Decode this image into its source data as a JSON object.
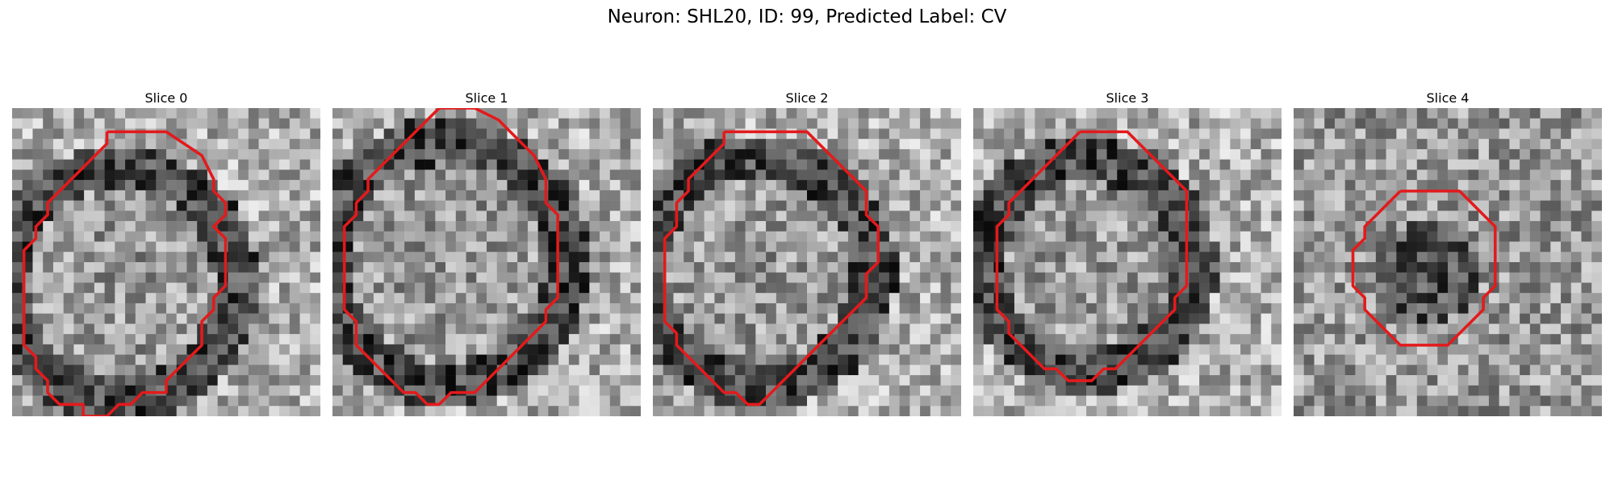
{
  "figure": {
    "title": "Neuron: SHL20, ID: 99, Predicted Label: CV",
    "outline_color": "#e31a1c"
  },
  "panels": [
    {
      "title": "Slice 0",
      "seed": 11,
      "contour": [
        [
          8,
          2
        ],
        [
          13,
          2
        ],
        [
          16,
          4
        ],
        [
          17,
          6
        ],
        [
          17,
          7
        ],
        [
          18,
          8
        ],
        [
          18,
          9
        ],
        [
          17,
          10
        ],
        [
          18,
          11
        ],
        [
          18,
          12
        ],
        [
          18,
          13
        ],
        [
          18,
          14
        ],
        [
          18,
          15
        ],
        [
          17,
          16
        ],
        [
          17,
          17
        ],
        [
          16,
          18
        ],
        [
          16,
          19
        ],
        [
          16,
          20
        ],
        [
          15,
          21
        ],
        [
          14,
          22
        ],
        [
          13,
          23
        ],
        [
          13,
          24
        ],
        [
          11,
          24
        ],
        [
          10,
          25
        ],
        [
          9,
          25
        ],
        [
          8,
          26
        ],
        [
          6,
          26
        ],
        [
          6,
          25
        ],
        [
          4,
          25
        ],
        [
          3,
          24
        ],
        [
          3,
          23
        ],
        [
          2,
          22
        ],
        [
          2,
          21
        ],
        [
          1,
          20
        ],
        [
          1,
          19
        ],
        [
          1,
          18
        ],
        [
          1,
          17
        ],
        [
          1,
          16
        ],
        [
          1,
          15
        ],
        [
          1,
          14
        ],
        [
          1,
          13
        ],
        [
          1,
          12
        ],
        [
          2,
          11
        ],
        [
          2,
          10
        ],
        [
          3,
          9
        ],
        [
          3,
          8
        ],
        [
          4,
          7
        ],
        [
          5,
          6
        ],
        [
          6,
          5
        ],
        [
          7,
          4
        ],
        [
          8,
          3
        ],
        [
          8,
          2
        ]
      ],
      "dark_rim": true
    },
    {
      "title": "Slice 1",
      "seed": 23,
      "contour": [
        [
          9,
          0
        ],
        [
          12,
          0
        ],
        [
          14,
          1
        ],
        [
          16,
          3
        ],
        [
          17,
          4
        ],
        [
          18,
          6
        ],
        [
          18,
          7
        ],
        [
          18,
          8
        ],
        [
          19,
          9
        ],
        [
          19,
          10
        ],
        [
          19,
          11
        ],
        [
          19,
          12
        ],
        [
          19,
          13
        ],
        [
          19,
          14
        ],
        [
          19,
          15
        ],
        [
          19,
          16
        ],
        [
          18,
          17
        ],
        [
          18,
          18
        ],
        [
          17,
          19
        ],
        [
          16,
          20
        ],
        [
          15,
          21
        ],
        [
          14,
          22
        ],
        [
          13,
          23
        ],
        [
          12,
          24
        ],
        [
          10,
          24
        ],
        [
          9,
          25
        ],
        [
          8,
          25
        ],
        [
          7,
          24
        ],
        [
          6,
          24
        ],
        [
          5,
          23
        ],
        [
          4,
          22
        ],
        [
          3,
          21
        ],
        [
          2,
          20
        ],
        [
          2,
          19
        ],
        [
          2,
          18
        ],
        [
          1,
          17
        ],
        [
          1,
          16
        ],
        [
          1,
          15
        ],
        [
          1,
          14
        ],
        [
          1,
          13
        ],
        [
          1,
          12
        ],
        [
          1,
          11
        ],
        [
          1,
          10
        ],
        [
          2,
          9
        ],
        [
          2,
          8
        ],
        [
          3,
          7
        ],
        [
          3,
          6
        ],
        [
          4,
          5
        ],
        [
          5,
          4
        ],
        [
          6,
          3
        ],
        [
          7,
          2
        ],
        [
          8,
          1
        ],
        [
          9,
          0
        ]
      ],
      "dark_rim": true
    },
    {
      "title": "Slice 2",
      "seed": 37,
      "contour": [
        [
          6,
          2
        ],
        [
          13,
          2
        ],
        [
          15,
          4
        ],
        [
          16,
          5
        ],
        [
          17,
          6
        ],
        [
          18,
          7
        ],
        [
          18,
          9
        ],
        [
          19,
          10
        ],
        [
          19,
          11
        ],
        [
          19,
          12
        ],
        [
          19,
          13
        ],
        [
          18,
          14
        ],
        [
          18,
          15
        ],
        [
          18,
          16
        ],
        [
          17,
          17
        ],
        [
          16,
          18
        ],
        [
          15,
          19
        ],
        [
          14,
          20
        ],
        [
          13,
          21
        ],
        [
          12,
          22
        ],
        [
          11,
          23
        ],
        [
          10,
          24
        ],
        [
          9,
          25
        ],
        [
          8,
          25
        ],
        [
          7,
          24
        ],
        [
          6,
          24
        ],
        [
          5,
          23
        ],
        [
          4,
          22
        ],
        [
          3,
          21
        ],
        [
          2,
          20
        ],
        [
          2,
          19
        ],
        [
          1,
          18
        ],
        [
          1,
          17
        ],
        [
          1,
          16
        ],
        [
          1,
          15
        ],
        [
          1,
          14
        ],
        [
          1,
          13
        ],
        [
          1,
          12
        ],
        [
          1,
          11
        ],
        [
          2,
          10
        ],
        [
          2,
          9
        ],
        [
          2,
          8
        ],
        [
          3,
          7
        ],
        [
          3,
          6
        ],
        [
          4,
          5
        ],
        [
          5,
          4
        ],
        [
          6,
          3
        ],
        [
          6,
          2
        ]
      ],
      "dark_rim": true
    },
    {
      "title": "Slice 3",
      "seed": 51,
      "contour": [
        [
          9,
          2
        ],
        [
          13,
          2
        ],
        [
          15,
          4
        ],
        [
          17,
          6
        ],
        [
          18,
          7
        ],
        [
          18,
          8
        ],
        [
          18,
          9
        ],
        [
          18,
          10
        ],
        [
          18,
          11
        ],
        [
          18,
          12
        ],
        [
          18,
          13
        ],
        [
          18,
          14
        ],
        [
          18,
          15
        ],
        [
          17,
          16
        ],
        [
          17,
          17
        ],
        [
          16,
          18
        ],
        [
          15,
          19
        ],
        [
          14,
          20
        ],
        [
          13,
          21
        ],
        [
          12,
          22
        ],
        [
          11,
          22
        ],
        [
          10,
          23
        ],
        [
          9,
          23
        ],
        [
          8,
          23
        ],
        [
          7,
          22
        ],
        [
          6,
          22
        ],
        [
          5,
          21
        ],
        [
          4,
          20
        ],
        [
          3,
          19
        ],
        [
          3,
          18
        ],
        [
          2,
          17
        ],
        [
          2,
          16
        ],
        [
          2,
          15
        ],
        [
          2,
          14
        ],
        [
          2,
          13
        ],
        [
          2,
          12
        ],
        [
          2,
          11
        ],
        [
          2,
          10
        ],
        [
          3,
          9
        ],
        [
          3,
          8
        ],
        [
          4,
          7
        ],
        [
          5,
          6
        ],
        [
          6,
          5
        ],
        [
          7,
          4
        ],
        [
          8,
          3
        ],
        [
          9,
          2
        ]
      ],
      "dark_rim": true
    },
    {
      "title": "Slice 4",
      "seed": 67,
      "contour": [
        [
          9,
          7
        ],
        [
          14,
          7
        ],
        [
          16,
          9
        ],
        [
          17,
          10
        ],
        [
          17,
          11
        ],
        [
          17,
          12
        ],
        [
          17,
          13
        ],
        [
          17,
          14
        ],
        [
          17,
          15
        ],
        [
          16,
          16
        ],
        [
          16,
          17
        ],
        [
          15,
          18
        ],
        [
          14,
          19
        ],
        [
          13,
          20
        ],
        [
          12,
          20
        ],
        [
          11,
          20
        ],
        [
          10,
          20
        ],
        [
          9,
          20
        ],
        [
          8,
          19
        ],
        [
          7,
          18
        ],
        [
          6,
          17
        ],
        [
          6,
          16
        ],
        [
          5,
          15
        ],
        [
          5,
          14
        ],
        [
          5,
          13
        ],
        [
          5,
          12
        ],
        [
          6,
          11
        ],
        [
          6,
          10
        ],
        [
          7,
          9
        ],
        [
          8,
          8
        ],
        [
          9,
          7
        ]
      ],
      "dark_rim": false
    }
  ]
}
